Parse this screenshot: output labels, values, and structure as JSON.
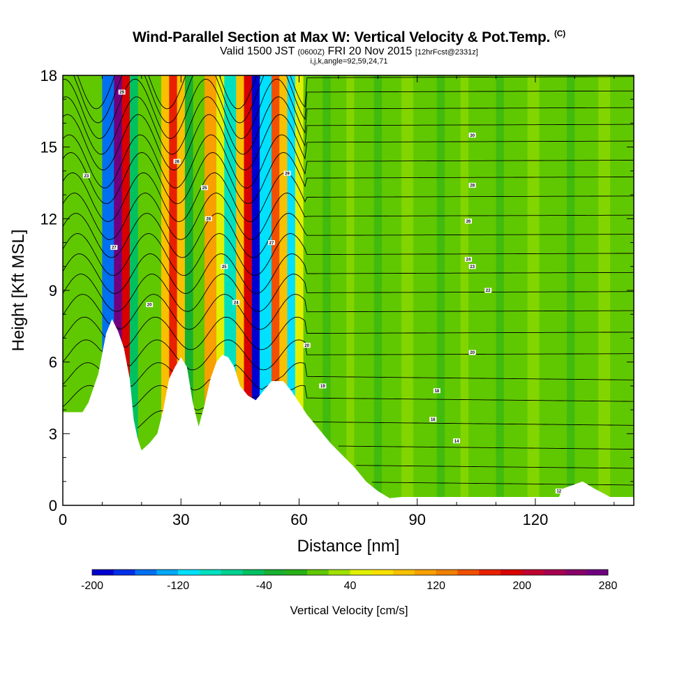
{
  "header": {
    "title": "Wind-Parallel Section at Max W: Vertical Velocity & Pot.Temp.",
    "title_mark": "(C)",
    "subtitle_a": "Valid 1500 JST",
    "subtitle_b": "(0600Z)",
    "subtitle_c": "FRI 20 Nov 2015",
    "subtitle_d": "[12hrFcst@2331z]",
    "subtitle2": "i,j,k,angle=92,59,24,71"
  },
  "chart_data": {
    "type": "heatmap",
    "xlabel": "Distance [nm]",
    "ylabel": "Height [Kft MSL]",
    "xlim": [
      0,
      145
    ],
    "ylim": [
      0,
      18
    ],
    "xticks": [
      "0",
      "30",
      "60",
      "90",
      "120"
    ],
    "yticks": [
      "0",
      "3",
      "6",
      "9",
      "12",
      "15",
      "18"
    ],
    "background_w": 15,
    "vertical_velocity_bands": [
      {
        "x0": 10,
        "x1": 13,
        "w": -160
      },
      {
        "x0": 13,
        "x1": 15,
        "w": 260
      },
      {
        "x0": 15,
        "x1": 17,
        "w": 180
      },
      {
        "x0": 17,
        "x1": 19,
        "w": -50
      },
      {
        "x0": 25,
        "x1": 27,
        "w": 90
      },
      {
        "x0": 27,
        "x1": 29,
        "w": 170
      },
      {
        "x0": 29,
        "x1": 31,
        "w": 90
      },
      {
        "x0": 31,
        "x1": 33,
        "w": -40
      },
      {
        "x0": 36,
        "x1": 39,
        "w": 110
      },
      {
        "x0": 39,
        "x1": 41,
        "w": 40
      },
      {
        "x0": 41,
        "x1": 44,
        "w": -100
      },
      {
        "x0": 44,
        "x1": 46,
        "w": 80
      },
      {
        "x0": 46,
        "x1": 48,
        "w": 180
      },
      {
        "x0": 48,
        "x1": 50,
        "w": -190
      },
      {
        "x0": 50,
        "x1": 53,
        "w": -110
      },
      {
        "x0": 53,
        "x1": 55,
        "w": 140
      },
      {
        "x0": 55,
        "x1": 57,
        "w": 80
      },
      {
        "x0": 57,
        "x1": 59,
        "w": -120
      },
      {
        "x0": 59,
        "x1": 61,
        "w": 50
      }
    ],
    "terrain_height_kft": [
      {
        "x": 0,
        "h": 3.9
      },
      {
        "x": 5,
        "h": 3.9
      },
      {
        "x": 6.5,
        "h": 4.3
      },
      {
        "x": 9,
        "h": 5.5
      },
      {
        "x": 11,
        "h": 7.2
      },
      {
        "x": 12.5,
        "h": 7.8
      },
      {
        "x": 14,
        "h": 7.3
      },
      {
        "x": 15.5,
        "h": 6.6
      },
      {
        "x": 17,
        "h": 5.3
      },
      {
        "x": 18,
        "h": 3.6
      },
      {
        "x": 19,
        "h": 2.8
      },
      {
        "x": 20,
        "h": 2.3
      },
      {
        "x": 22,
        "h": 2.6
      },
      {
        "x": 24,
        "h": 3.0
      },
      {
        "x": 25.5,
        "h": 4.0
      },
      {
        "x": 27,
        "h": 5.3
      },
      {
        "x": 28.5,
        "h": 5.8
      },
      {
        "x": 30,
        "h": 6.2
      },
      {
        "x": 31.5,
        "h": 5.8
      },
      {
        "x": 33,
        "h": 4.3
      },
      {
        "x": 34.5,
        "h": 3.3
      },
      {
        "x": 36,
        "h": 4.2
      },
      {
        "x": 37.5,
        "h": 5.3
      },
      {
        "x": 39,
        "h": 6.0
      },
      {
        "x": 40.5,
        "h": 6.3
      },
      {
        "x": 42,
        "h": 6.2
      },
      {
        "x": 43.5,
        "h": 5.8
      },
      {
        "x": 45,
        "h": 5.0
      },
      {
        "x": 47,
        "h": 4.6
      },
      {
        "x": 49,
        "h": 4.4
      },
      {
        "x": 51,
        "h": 4.8
      },
      {
        "x": 53,
        "h": 5.2
      },
      {
        "x": 56,
        "h": 5.2
      },
      {
        "x": 58,
        "h": 4.8
      },
      {
        "x": 60,
        "h": 4.3
      },
      {
        "x": 62,
        "h": 3.8
      },
      {
        "x": 65,
        "h": 3.2
      },
      {
        "x": 68,
        "h": 2.6
      },
      {
        "x": 71,
        "h": 2.1
      },
      {
        "x": 74,
        "h": 1.6
      },
      {
        "x": 77,
        "h": 1.0
      },
      {
        "x": 80,
        "h": 0.6
      },
      {
        "x": 83,
        "h": 0.3
      },
      {
        "x": 86,
        "h": 0.35
      },
      {
        "x": 95,
        "h": 0.35
      },
      {
        "x": 110,
        "h": 0.35
      },
      {
        "x": 126,
        "h": 0.35
      },
      {
        "x": 127,
        "h": 0.7
      },
      {
        "x": 132,
        "h": 1.0
      },
      {
        "x": 135,
        "h": 0.7
      },
      {
        "x": 139,
        "h": 0.35
      },
      {
        "x": 145,
        "h": 0.35
      }
    ],
    "theta_contour_base_levels_kft": [
      1,
      1.7,
      2.5,
      3.5,
      4.5,
      5.4,
      6.3,
      7.2,
      8.1,
      8.9,
      9.7,
      10.5,
      11.3,
      12.1,
      12.9,
      13.7,
      14.4,
      15.2,
      15.9,
      16.6,
      17.3,
      17.9
    ],
    "contour_labels": [
      {
        "x": 6,
        "y": 13.8,
        "text": "23"
      },
      {
        "x": 13,
        "y": 10.8,
        "text": "27"
      },
      {
        "x": 15,
        "y": 17.3,
        "text": "29"
      },
      {
        "x": 22,
        "y": 8.4,
        "text": "20"
      },
      {
        "x": 29,
        "y": 14.4,
        "text": "26"
      },
      {
        "x": 36,
        "y": 13.3,
        "text": "25"
      },
      {
        "x": 37,
        "y": 12.0,
        "text": "28"
      },
      {
        "x": 41,
        "y": 10.0,
        "text": "25"
      },
      {
        "x": 44,
        "y": 8.5,
        "text": "24"
      },
      {
        "x": 53,
        "y": 11.0,
        "text": "27"
      },
      {
        "x": 57,
        "y": 13.9,
        "text": "29"
      },
      {
        "x": 62,
        "y": 6.7,
        "text": "20"
      },
      {
        "x": 66,
        "y": 5.0,
        "text": "19"
      },
      {
        "x": 95,
        "y": 4.8,
        "text": "18"
      },
      {
        "x": 94,
        "y": 3.6,
        "text": "16"
      },
      {
        "x": 100,
        "y": 2.7,
        "text": "14"
      },
      {
        "x": 104,
        "y": 15.5,
        "text": "30"
      },
      {
        "x": 104,
        "y": 13.4,
        "text": "28"
      },
      {
        "x": 103,
        "y": 11.9,
        "text": "26"
      },
      {
        "x": 103,
        "y": 10.3,
        "text": "24"
      },
      {
        "x": 104,
        "y": 10.0,
        "text": "23"
      },
      {
        "x": 108,
        "y": 9.0,
        "text": "22"
      },
      {
        "x": 104,
        "y": 6.4,
        "text": "20"
      },
      {
        "x": 126,
        "y": 0.6,
        "text": "12"
      }
    ]
  },
  "colorbar": {
    "colors": [
      "#0000d0",
      "#0030e8",
      "#0070f0",
      "#00a8f8",
      "#00e0ff",
      "#00e0c0",
      "#00d090",
      "#00c060",
      "#18b030",
      "#28b018",
      "#60c800",
      "#a0e000",
      "#e0f000",
      "#f8e000",
      "#f8c000",
      "#f8a000",
      "#f08000",
      "#f05000",
      "#e82000",
      "#d80000",
      "#c00030",
      "#a80050",
      "#880068",
      "#700080"
    ],
    "min": -200,
    "step": 20,
    "labels": [
      "-200",
      "-120",
      "-40",
      "40",
      "120",
      "200",
      "280"
    ],
    "title": "Vertical Velocity [cm/s]"
  }
}
